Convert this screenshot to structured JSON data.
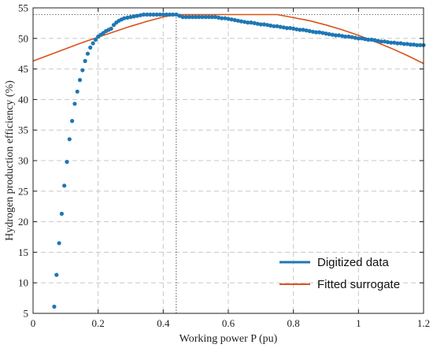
{
  "chart_data": {
    "type": "scatter",
    "xlabel": "Working power P (pu)",
    "ylabel": "Hydrogen production efficiency (%)",
    "xlim": [
      0,
      1.2
    ],
    "ylim": [
      5,
      55
    ],
    "xticks": [
      0,
      0.2,
      0.4,
      0.6,
      0.8,
      1.0,
      1.2
    ],
    "xtick_labels": [
      "0",
      "0.2",
      "0.4",
      "0.6",
      "0.8",
      "1",
      "1.2"
    ],
    "yticks": [
      5,
      10,
      15,
      20,
      25,
      30,
      35,
      40,
      45,
      50,
      55
    ],
    "ytick_labels": [
      "5",
      "10",
      "15",
      "20",
      "25",
      "30",
      "35",
      "40",
      "45",
      "50",
      "55"
    ],
    "grid": true,
    "legend_position": "bottom-right",
    "reference_lines": {
      "x": 0.44,
      "y": 53.9
    },
    "series": [
      {
        "name": "Digitized data",
        "kind": "scatter",
        "color": "#1f77b4",
        "x": [
          0.065,
          0.072,
          0.08,
          0.088,
          0.096,
          0.104,
          0.112,
          0.12,
          0.128,
          0.136,
          0.144,
          0.152,
          0.16,
          0.168,
          0.176,
          0.184,
          0.192,
          0.2,
          0.208,
          0.216,
          0.224,
          0.232,
          0.24,
          0.248,
          0.256,
          0.264,
          0.272,
          0.28,
          0.29,
          0.3,
          0.31,
          0.32,
          0.33,
          0.34,
          0.35,
          0.36,
          0.37,
          0.38,
          0.39,
          0.4,
          0.41,
          0.42,
          0.43,
          0.44,
          0.45,
          0.46,
          0.47,
          0.48,
          0.49,
          0.5,
          0.51,
          0.52,
          0.53,
          0.54,
          0.55,
          0.56,
          0.57,
          0.58,
          0.59,
          0.6,
          0.61,
          0.62,
          0.63,
          0.64,
          0.65,
          0.66,
          0.67,
          0.68,
          0.69,
          0.7,
          0.71,
          0.72,
          0.73,
          0.74,
          0.75,
          0.76,
          0.77,
          0.78,
          0.79,
          0.8,
          0.81,
          0.82,
          0.83,
          0.84,
          0.85,
          0.86,
          0.87,
          0.88,
          0.89,
          0.9,
          0.91,
          0.92,
          0.93,
          0.94,
          0.95,
          0.96,
          0.97,
          0.98,
          0.99,
          1.0,
          1.01,
          1.02,
          1.03,
          1.04,
          1.05,
          1.06,
          1.07,
          1.08,
          1.09,
          1.1,
          1.11,
          1.12,
          1.13,
          1.14,
          1.15,
          1.16,
          1.17,
          1.18,
          1.19,
          1.2
        ],
        "y": [
          6.1,
          11.3,
          16.5,
          21.3,
          25.9,
          29.8,
          33.5,
          36.5,
          39.3,
          41.3,
          43.2,
          44.8,
          46.3,
          47.5,
          48.5,
          49.2,
          49.8,
          50.3,
          50.6,
          50.9,
          51.2,
          51.4,
          51.6,
          52.2,
          52.6,
          52.9,
          53.1,
          53.3,
          53.4,
          53.5,
          53.6,
          53.7,
          53.8,
          53.9,
          53.9,
          53.9,
          53.9,
          53.9,
          53.9,
          53.9,
          53.9,
          53.9,
          53.9,
          53.9,
          53.7,
          53.5,
          53.5,
          53.5,
          53.5,
          53.5,
          53.5,
          53.5,
          53.5,
          53.5,
          53.5,
          53.5,
          53.4,
          53.3,
          53.3,
          53.2,
          53.1,
          53.0,
          52.9,
          52.8,
          52.7,
          52.6,
          52.6,
          52.5,
          52.4,
          52.3,
          52.3,
          52.2,
          52.1,
          52.0,
          52.0,
          51.9,
          51.8,
          51.7,
          51.7,
          51.6,
          51.5,
          51.4,
          51.4,
          51.3,
          51.2,
          51.1,
          51.0,
          51.0,
          50.9,
          50.8,
          50.7,
          50.6,
          50.5,
          50.5,
          50.4,
          50.3,
          50.3,
          50.2,
          50.1,
          50.0,
          50.0,
          49.9,
          49.8,
          49.8,
          49.7,
          49.6,
          49.5,
          49.5,
          49.4,
          49.3,
          49.3,
          49.2,
          49.2,
          49.1,
          49.1,
          49.0,
          49.0,
          48.9,
          48.9,
          48.9
        ]
      },
      {
        "name": "Fitted surrogate",
        "kind": "line",
        "color": "#d95319",
        "x": [
          0,
          0.05,
          0.1,
          0.15,
          0.2,
          0.25,
          0.3,
          0.35,
          0.4,
          0.44,
          0.5,
          0.55,
          0.6,
          0.65,
          0.7,
          0.75,
          0.8,
          0.85,
          0.9,
          0.95,
          1.0,
          1.05,
          1.1,
          1.15,
          1.2
        ],
        "y": [
          46.3,
          47.3,
          48.3,
          49.3,
          50.2,
          51.1,
          52.0,
          52.8,
          53.5,
          53.9,
          53.9,
          53.9,
          53.9,
          53.9,
          53.9,
          53.9,
          53.4,
          52.9,
          52.2,
          51.4,
          50.5,
          49.5,
          48.4,
          47.2,
          45.9
        ]
      }
    ]
  }
}
